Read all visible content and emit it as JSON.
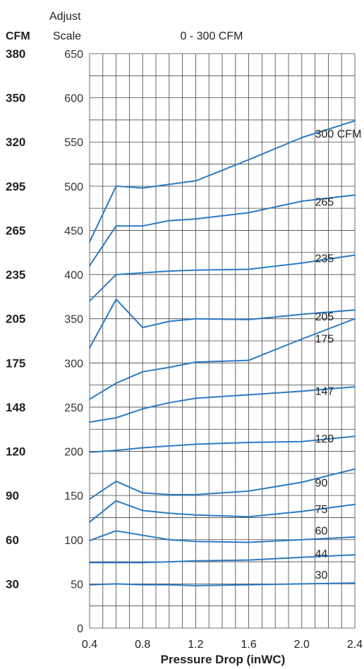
{
  "header": {
    "cfm_col_label": "CFM",
    "adjust_label_line1": "Adjust",
    "adjust_label_line2": "Scale",
    "range_title": "0 - 300 CFM"
  },
  "chart_data": {
    "type": "line",
    "title": "0 - 300 CFM",
    "xlabel": "Pressure Drop (inWC)",
    "ylabel": "Adjust Scale",
    "xlim": [
      0.4,
      2.4
    ],
    "ylim": [
      0,
      650
    ],
    "grid": true,
    "x_ticks": [
      "0.4",
      "0.8",
      "1.2",
      "1.6",
      "2.0",
      "2.4"
    ],
    "x_tick_values": [
      0.4,
      0.8,
      1.2,
      1.6,
      2.0,
      2.4
    ],
    "adjust_scale_ticks": [
      "650",
      "600",
      "550",
      "500",
      "450",
      "400",
      "350",
      "300",
      "250",
      "200",
      "150",
      "100",
      "50",
      "0"
    ],
    "adjust_scale_values": [
      650,
      600,
      550,
      500,
      450,
      400,
      350,
      300,
      250,
      200,
      150,
      100,
      50,
      0
    ],
    "cfm_ticks": [
      {
        "label": "380",
        "at": 650
      },
      {
        "label": "350",
        "at": 600
      },
      {
        "label": "320",
        "at": 550
      },
      {
        "label": "295",
        "at": 500
      },
      {
        "label": "265",
        "at": 450
      },
      {
        "label": "235",
        "at": 400
      },
      {
        "label": "205",
        "at": 350
      },
      {
        "label": "175",
        "at": 300
      },
      {
        "label": "148",
        "at": 250
      },
      {
        "label": "120",
        "at": 200
      },
      {
        "label": "90",
        "at": 150
      },
      {
        "label": "60",
        "at": 100
      },
      {
        "label": "30",
        "at": 50
      }
    ],
    "series": [
      {
        "name": "300 CFM",
        "label_at": [
          2.1,
          555
        ],
        "points": [
          [
            0.4,
            437
          ],
          [
            0.6,
            500
          ],
          [
            0.8,
            498
          ],
          [
            1.0,
            502
          ],
          [
            1.2,
            506
          ],
          [
            1.6,
            530
          ],
          [
            2.0,
            555
          ],
          [
            2.4,
            574
          ]
        ]
      },
      {
        "name": "265",
        "label_at": [
          2.1,
          478
        ],
        "points": [
          [
            0.4,
            410
          ],
          [
            0.6,
            455
          ],
          [
            0.8,
            455
          ],
          [
            1.0,
            461
          ],
          [
            1.2,
            463
          ],
          [
            1.6,
            470
          ],
          [
            2.0,
            483
          ],
          [
            2.4,
            490
          ]
        ]
      },
      {
        "name": "235",
        "label_at": [
          2.1,
          414
        ],
        "points": [
          [
            0.4,
            370
          ],
          [
            0.6,
            400
          ],
          [
            0.8,
            402
          ],
          [
            1.0,
            404
          ],
          [
            1.2,
            405
          ],
          [
            1.6,
            406
          ],
          [
            2.0,
            413
          ],
          [
            2.4,
            422
          ]
        ]
      },
      {
        "name": "205",
        "label_at": [
          2.1,
          348
        ],
        "points": [
          [
            0.4,
            317
          ],
          [
            0.6,
            372
          ],
          [
            0.8,
            340
          ],
          [
            1.0,
            347
          ],
          [
            1.2,
            350
          ],
          [
            1.6,
            349
          ],
          [
            2.0,
            355
          ],
          [
            2.4,
            360
          ]
        ]
      },
      {
        "name": "175",
        "label_at": [
          2.1,
          323
        ],
        "points": [
          [
            0.4,
            259
          ],
          [
            0.6,
            277
          ],
          [
            0.8,
            290
          ],
          [
            1.0,
            295
          ],
          [
            1.2,
            301
          ],
          [
            1.6,
            303
          ],
          [
            2.0,
            327
          ],
          [
            2.4,
            350
          ]
        ]
      },
      {
        "name": "147",
        "label_at": [
          2.1,
          264
        ],
        "points": [
          [
            0.4,
            233
          ],
          [
            0.6,
            238
          ],
          [
            0.8,
            248
          ],
          [
            1.0,
            255
          ],
          [
            1.2,
            260
          ],
          [
            1.6,
            264
          ],
          [
            2.0,
            268
          ],
          [
            2.4,
            273
          ]
        ]
      },
      {
        "name": "120",
        "label_at": [
          2.1,
          210
        ],
        "points": [
          [
            0.4,
            199
          ],
          [
            0.6,
            201
          ],
          [
            0.8,
            204
          ],
          [
            1.0,
            206
          ],
          [
            1.2,
            208
          ],
          [
            1.6,
            210
          ],
          [
            2.0,
            211
          ],
          [
            2.4,
            217
          ]
        ]
      },
      {
        "name": "90",
        "label_at": [
          2.1,
          160
        ],
        "points": [
          [
            0.4,
            146
          ],
          [
            0.6,
            166
          ],
          [
            0.8,
            153
          ],
          [
            1.0,
            151
          ],
          [
            1.2,
            151
          ],
          [
            1.6,
            155
          ],
          [
            2.0,
            165
          ],
          [
            2.4,
            180
          ]
        ]
      },
      {
        "name": "75",
        "label_at": [
          2.1,
          130
        ],
        "points": [
          [
            0.4,
            120
          ],
          [
            0.6,
            144
          ],
          [
            0.8,
            133
          ],
          [
            1.0,
            130
          ],
          [
            1.2,
            128
          ],
          [
            1.6,
            126
          ],
          [
            2.0,
            132
          ],
          [
            2.4,
            140
          ]
        ]
      },
      {
        "name": "60",
        "label_at": [
          2.1,
          106
        ],
        "points": [
          [
            0.4,
            99
          ],
          [
            0.6,
            110
          ],
          [
            0.8,
            105
          ],
          [
            1.0,
            100
          ],
          [
            1.2,
            98
          ],
          [
            1.6,
            97
          ],
          [
            2.0,
            100
          ],
          [
            2.4,
            103
          ]
        ]
      },
      {
        "name": "44",
        "label_at": [
          2.1,
          80
        ],
        "points": [
          [
            0.4,
            74
          ],
          [
            0.6,
            74
          ],
          [
            0.8,
            74
          ],
          [
            1.0,
            75
          ],
          [
            1.2,
            76
          ],
          [
            1.6,
            77
          ],
          [
            2.0,
            80
          ],
          [
            2.4,
            83
          ]
        ]
      },
      {
        "name": "30",
        "label_at": [
          2.1,
          56
        ],
        "points": [
          [
            0.4,
            49
          ],
          [
            0.6,
            50
          ],
          [
            0.8,
            49
          ],
          [
            1.0,
            49
          ],
          [
            1.2,
            48
          ],
          [
            1.6,
            49
          ],
          [
            2.0,
            50
          ],
          [
            2.4,
            51
          ]
        ]
      }
    ]
  },
  "colors": {
    "curve": "#2b7bc4",
    "grid": "#444444",
    "text": "#222222",
    "background": "#ffffff"
  }
}
